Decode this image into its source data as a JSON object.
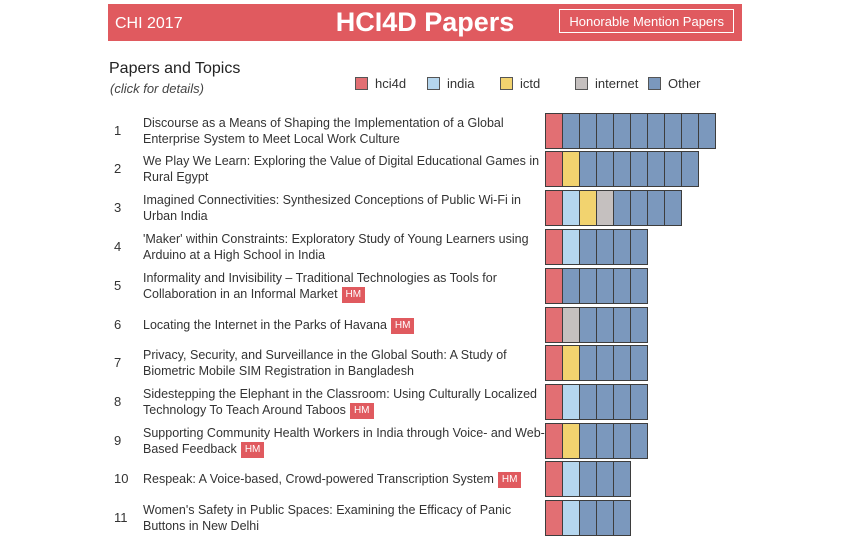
{
  "header": {
    "left_label": "CHI 2017",
    "title": "HCI4D Papers",
    "honorable_button": "Honorable Mention Papers"
  },
  "section": {
    "title": "Papers and Topics",
    "subtitle": "(click for details)"
  },
  "colors": {
    "brand": "#e05a5f",
    "hci4d": "#e26f73",
    "india": "#b5d6ee",
    "ictd": "#f2d36f",
    "internet": "#c5c0bf",
    "other": "#7b98bd"
  },
  "legend": [
    {
      "key": "hci4d",
      "label": "hci4d"
    },
    {
      "key": "india",
      "label": "india"
    },
    {
      "key": "ictd",
      "label": "ictd"
    },
    {
      "key": "internet",
      "label": "internet"
    },
    {
      "key": "other",
      "label": "Other"
    }
  ],
  "papers": [
    {
      "num": "1",
      "title": "Discourse as a Means of Shaping the Implementation of a Global Enterprise System to Meet Local Work Culture",
      "hm": false,
      "hm_label": "",
      "topics": [
        "hci4d",
        "other",
        "other",
        "other",
        "other",
        "other",
        "other",
        "other",
        "other",
        "other"
      ]
    },
    {
      "num": "2",
      "title": "We Play We Learn: Exploring the Value of Digital Educational Games in Rural Egypt",
      "hm": false,
      "hm_label": "",
      "topics": [
        "hci4d",
        "ictd",
        "other",
        "other",
        "other",
        "other",
        "other",
        "other",
        "other"
      ]
    },
    {
      "num": "3",
      "title": "Imagined Connectivities: Synthesized Conceptions of Public Wi-Fi in Urban India",
      "hm": false,
      "hm_label": "",
      "topics": [
        "hci4d",
        "india",
        "ictd",
        "internet",
        "other",
        "other",
        "other",
        "other"
      ]
    },
    {
      "num": "4",
      "title": "'Maker' within Constraints: Exploratory Study of Young Learners using Arduino at a High School in India",
      "hm": false,
      "hm_label": "",
      "topics": [
        "hci4d",
        "india",
        "other",
        "other",
        "other",
        "other"
      ]
    },
    {
      "num": "5",
      "title": "Informality and Invisibility – Traditional Technologies as Tools for Collaboration in an Informal Market",
      "hm": true,
      "hm_label": "HM",
      "topics": [
        "hci4d",
        "other",
        "other",
        "other",
        "other",
        "other"
      ]
    },
    {
      "num": "6",
      "title": "Locating the Internet in the Parks of Havana",
      "hm": true,
      "hm_label": "HM",
      "topics": [
        "hci4d",
        "internet",
        "other",
        "other",
        "other",
        "other"
      ]
    },
    {
      "num": "7",
      "title": "Privacy, Security, and Surveillance in the Global South: A Study of Biometric Mobile SIM Registration in Bangladesh",
      "hm": false,
      "hm_label": "",
      "topics": [
        "hci4d",
        "ictd",
        "other",
        "other",
        "other",
        "other"
      ]
    },
    {
      "num": "8",
      "title": "Sidestepping the Elephant in the Classroom: Using Culturally Localized Technology To Teach Around Taboos",
      "hm": true,
      "hm_label": "HM",
      "topics": [
        "hci4d",
        "india",
        "other",
        "other",
        "other",
        "other"
      ]
    },
    {
      "num": "9",
      "title": "Supporting Community Health Workers in India through Voice- and Web-Based Feedback",
      "hm": true,
      "hm_label": "HM",
      "topics": [
        "hci4d",
        "ictd",
        "other",
        "other",
        "other",
        "other"
      ]
    },
    {
      "num": "10",
      "title": "Respeak: A Voice-based, Crowd-powered Transcription System",
      "hm": true,
      "hm_label": "HM",
      "topics": [
        "hci4d",
        "india",
        "other",
        "other",
        "other"
      ]
    },
    {
      "num": "11",
      "title": "Women's Safety in Public Spaces: Examining the Efficacy of Panic Buttons in New Delhi",
      "hm": false,
      "hm_label": "",
      "topics": [
        "hci4d",
        "india",
        "other",
        "other",
        "other"
      ]
    }
  ]
}
